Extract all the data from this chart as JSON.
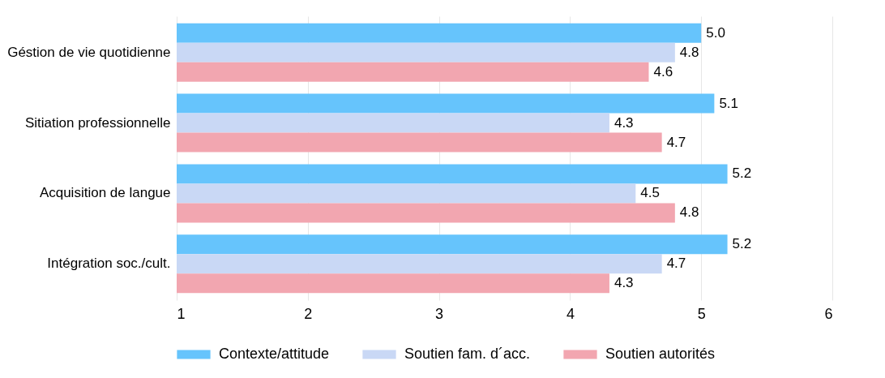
{
  "chart_data": {
    "type": "bar",
    "orientation": "horizontal",
    "categories": [
      "Géstion de vie quotidienne",
      "Sitiation professionnelle",
      "Acquisition de langue",
      "Intégration soc./cult."
    ],
    "series": [
      {
        "name": "Contexte/attitude",
        "color": "#66c4fc",
        "values": [
          5.0,
          5.1,
          5.2,
          5.2
        ],
        "value_labels": [
          "5.0",
          "5.1",
          "5.2",
          "5.2"
        ]
      },
      {
        "name": "Soutien fam. d´acc.",
        "color": "#c9d8f5",
        "values": [
          4.8,
          4.3,
          4.5,
          4.7
        ],
        "value_labels": [
          "4.8",
          "4.3",
          "4.5",
          "4.7"
        ]
      },
      {
        "name": "Soutien autorités",
        "color": "#f2a6b0",
        "values": [
          4.6,
          4.7,
          4.8,
          4.3
        ],
        "value_labels": [
          "4.6",
          "4.7",
          "4.8",
          "4.3"
        ]
      }
    ],
    "xlim": [
      1,
      6
    ],
    "xticks": [
      1,
      2,
      3,
      4,
      5,
      6
    ],
    "grid": "x",
    "legend": "bottom"
  }
}
